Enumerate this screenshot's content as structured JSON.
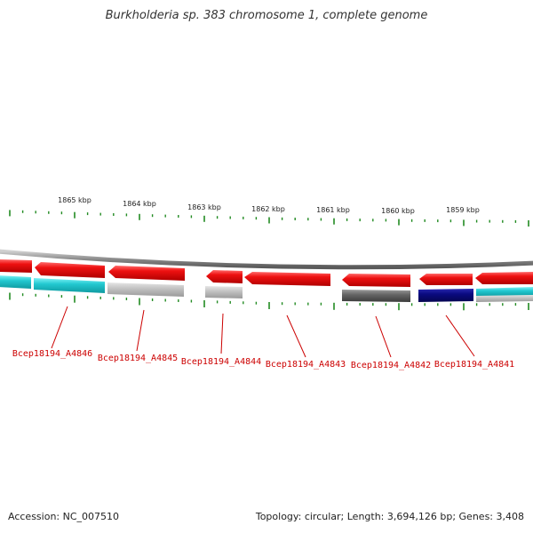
{
  "title": "Burkholderia sp. 383 chromosome 1, complete genome",
  "colors": {
    "backbone": "#8a8a8a",
    "forward_strand_gene": "#ee1111",
    "cyan_feature": "#22c8d0",
    "grey_feature": "#bdbdbd",
    "dark_grey_feature": "#666666",
    "navy_feature": "#0a0a80",
    "tick": "#228b22",
    "label": "#cc0000"
  },
  "scale": {
    "unit": "kbp",
    "labels": [
      "1865 kbp",
      "1864 kbp",
      "1863 kbp",
      "1862 kbp",
      "1861 kbp",
      "1860 kbp",
      "1859 kbp"
    ]
  },
  "genes": [
    {
      "locus_tag": "Bcep18194_A4846",
      "label": "Bcep18194_A4846",
      "strand": "-",
      "feature_color": "cyan"
    },
    {
      "locus_tag": "Bcep18194_A4845",
      "label": "Bcep18194_A4845",
      "strand": "-",
      "feature_color": "grey"
    },
    {
      "locus_tag": "Bcep18194_A4844",
      "label": "Bcep18194_A4844",
      "strand": "-",
      "feature_color": "grey"
    },
    {
      "locus_tag": "Bcep18194_A4843",
      "label": "Bcep18194_A4843",
      "strand": "-",
      "feature_color": "none"
    },
    {
      "locus_tag": "Bcep18194_A4842",
      "label": "Bcep18194_A4842",
      "strand": "-",
      "feature_color": "dark-grey"
    },
    {
      "locus_tag": "Bcep18194_A4841",
      "label": "Bcep18194_A4841",
      "strand": "-",
      "feature_color": "navy"
    }
  ],
  "footer": {
    "accession": "Accession: NC_007510",
    "summary": "Topology: circular; Length: 3,694,126 bp; Genes: 3,408"
  }
}
